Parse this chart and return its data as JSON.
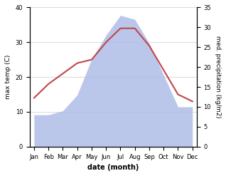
{
  "months": [
    "Jan",
    "Feb",
    "Mar",
    "Apr",
    "May",
    "Jun",
    "Jul",
    "Aug",
    "Sep",
    "Oct",
    "Nov",
    "Dec"
  ],
  "max_temp": [
    14,
    18,
    21,
    24,
    25,
    30,
    34,
    34,
    29,
    22,
    15,
    13
  ],
  "precipitation": [
    8,
    8,
    9,
    13,
    22,
    28,
    33,
    32,
    26,
    18,
    10,
    10
  ],
  "temp_color": "#c0474a",
  "precip_color": "#b0bce8",
  "left_ylim": [
    0,
    40
  ],
  "right_ylim": [
    0,
    35
  ],
  "left_yticks": [
    0,
    10,
    20,
    30,
    40
  ],
  "right_yticks": [
    0,
    5,
    10,
    15,
    20,
    25,
    30,
    35
  ],
  "ylabel_left": "max temp (C)",
  "ylabel_right": "med. precipitation (kg/m2)",
  "xlabel": "date (month)",
  "background_color": "#ffffff",
  "plot_bg_color": "#ffffff"
}
